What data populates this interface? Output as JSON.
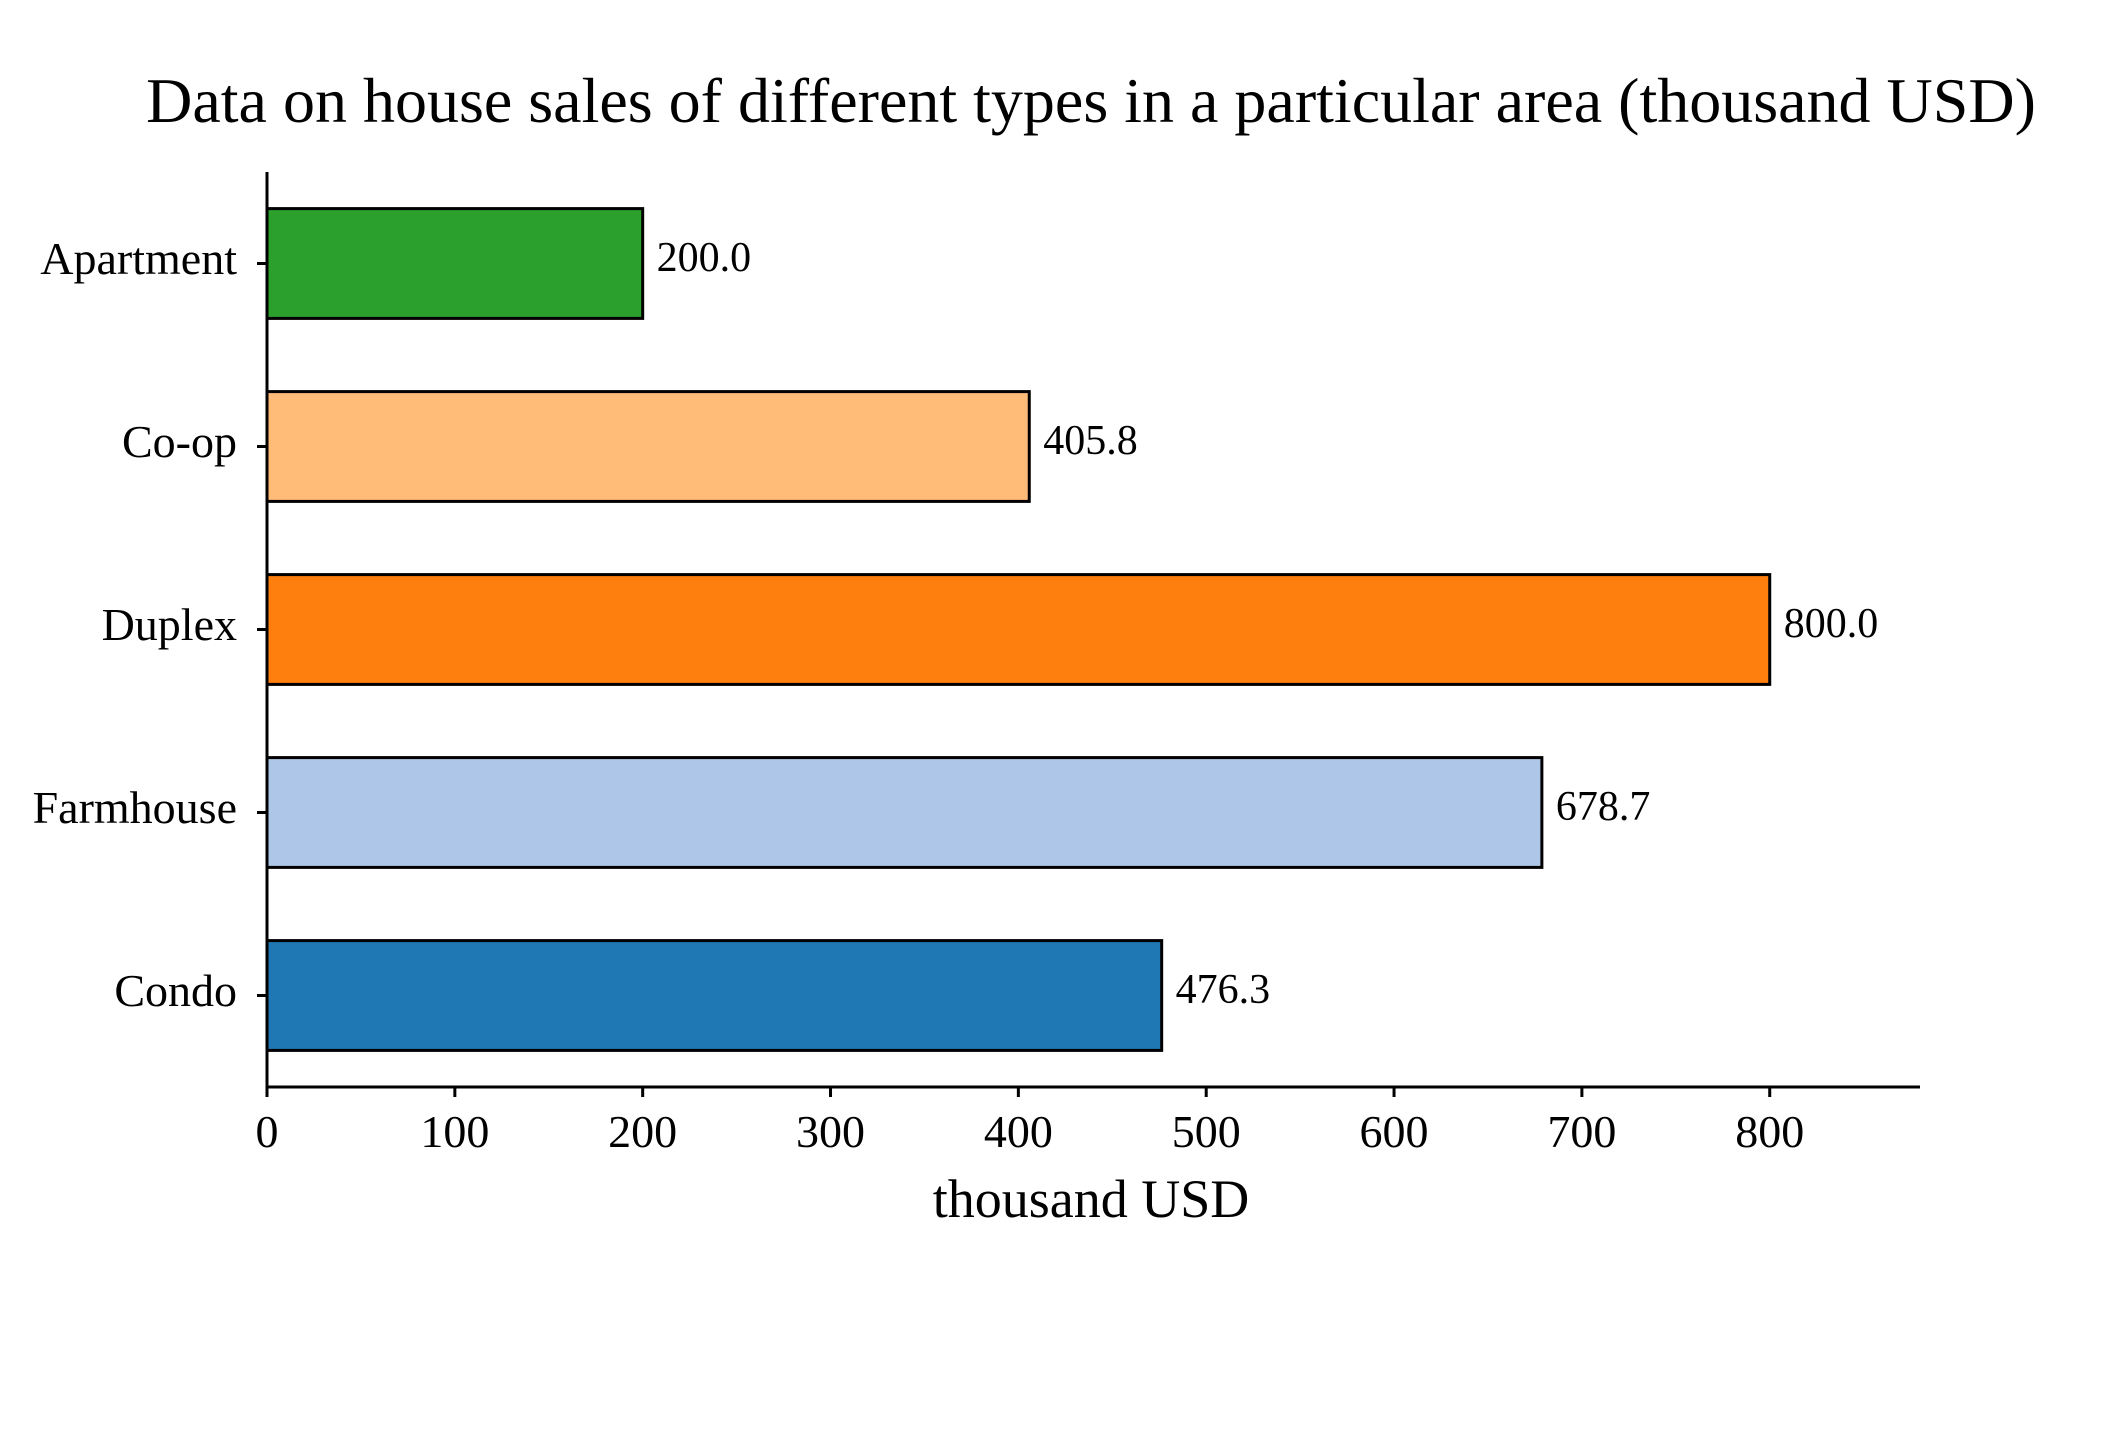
{
  "chart_data": {
    "type": "bar",
    "orientation": "horizontal",
    "title": "Data on house sales of different types in a particular area (thousand USD)",
    "xlabel": "thousand USD",
    "ylabel": "",
    "categories": [
      "Apartment",
      "Co-op",
      "Duplex",
      "Farmhouse",
      "Condo"
    ],
    "values": [
      200.0,
      405.8,
      800.0,
      678.7,
      476.3
    ],
    "value_labels": [
      "200.0",
      "405.8",
      "800.0",
      "678.7",
      "476.3"
    ],
    "colors": [
      "#2ca02c",
      "#ffbb78",
      "#ff7f0e",
      "#aec7e8",
      "#1f77b4"
    ],
    "bar_edge_color": "#000000",
    "xlim": [
      0,
      880
    ],
    "xticks": [
      0,
      100,
      200,
      300,
      400,
      500,
      600,
      700,
      800
    ],
    "xtick_labels": [
      "0",
      "100",
      "200",
      "300",
      "400",
      "500",
      "600",
      "700",
      "800"
    ],
    "grid": false,
    "legend": "none"
  }
}
